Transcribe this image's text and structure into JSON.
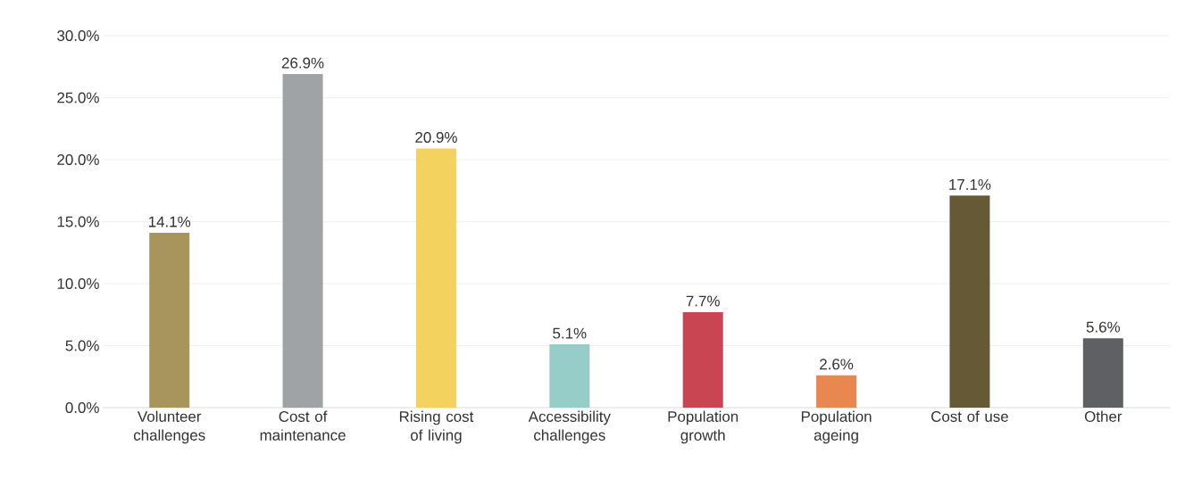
{
  "chart_data": {
    "type": "bar",
    "categories": [
      "Volunteer challenges",
      "Cost of maintenance",
      "Rising cost of living",
      "Accessibility challenges",
      "Population growth",
      "Population ageing",
      "Cost of use",
      "Other"
    ],
    "values": [
      14.1,
      26.9,
      20.9,
      5.1,
      7.7,
      2.6,
      17.1,
      5.6
    ],
    "value_labels": [
      "14.1%",
      "26.9%",
      "20.9%",
      "5.1%",
      "7.7%",
      "2.6%",
      "17.1%",
      "5.6%"
    ],
    "colors": [
      "#a8955c",
      "#a0a3a6",
      "#f3d35e",
      "#96cdc9",
      "#c94552",
      "#e8874f",
      "#665a36",
      "#5e6064"
    ],
    "ylim": [
      0,
      30
    ],
    "yticks": [
      {
        "value": 0,
        "label": "0.0%"
      },
      {
        "value": 5,
        "label": "5.0%"
      },
      {
        "value": 10,
        "label": "10.0%"
      },
      {
        "value": 15,
        "label": "15.0%"
      },
      {
        "value": 20,
        "label": "20.0%"
      },
      {
        "value": 25,
        "label": "25.0%"
      },
      {
        "value": 30,
        "label": "30.0%"
      }
    ],
    "grid": "y"
  }
}
